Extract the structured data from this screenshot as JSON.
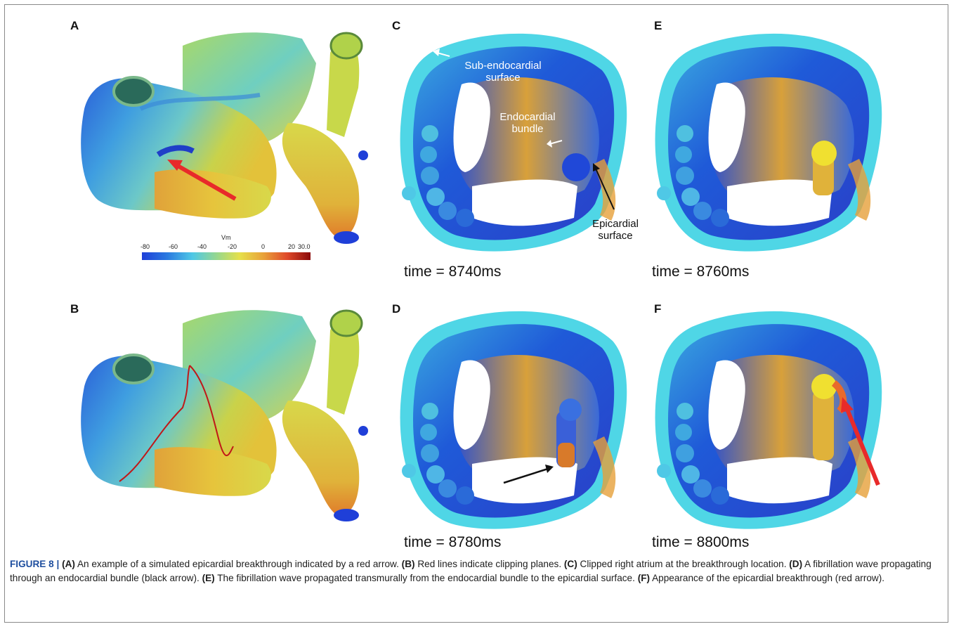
{
  "panels": {
    "a": "A",
    "b": "B",
    "c": "C",
    "d": "D",
    "e": "E",
    "f": "F"
  },
  "times": {
    "c": "time = 8740ms",
    "e": "time = 8760ms",
    "d": "time = 8780ms",
    "f": "time = 8800ms"
  },
  "annotations": {
    "sub_endocardial": "Sub-endocardial surface",
    "sub_endocardial_line1": "Sub-endocardial",
    "sub_endocardial_line2": "surface",
    "endocardial_line1": "Endocardial",
    "endocardial_line2": "bundle",
    "epicardial_line1": "Epicardial",
    "epicardial_line2": "surface"
  },
  "colorbar": {
    "title": "Vm",
    "ticks": [
      "-80",
      "-60",
      "-40",
      "-20",
      "0",
      "20",
      "30.0"
    ],
    "range": [
      -80,
      30
    ]
  },
  "caption": {
    "figure_label": "FIGURE 8 |",
    "parts": [
      {
        "tag": "(A)",
        "text": " An example of a simulated epicardial breakthrough indicated by a red arrow. "
      },
      {
        "tag": "(B)",
        "text": " Red lines indicate clipping planes. "
      },
      {
        "tag": "(C)",
        "text": " Clipped right atrium at the breakthrough location. "
      },
      {
        "tag": "(D)",
        "text": " A fibrillation wave propagating through an endocardial bundle (black arrow). "
      },
      {
        "tag": "(E)",
        "text": " The fibrillation wave propagated transmurally from the endocardial bundle to the epicardial surface. "
      },
      {
        "tag": "(F)",
        "text": " Appearance of the epicardial breakthrough (red arrow)."
      }
    ]
  },
  "colors": {
    "blue": "#1f4fd6",
    "cyan": "#4fd6e6",
    "yellow": "#e8d84a",
    "orange": "#e08a2a",
    "red": "#e02020",
    "caption_label": "#1f4f9f"
  }
}
